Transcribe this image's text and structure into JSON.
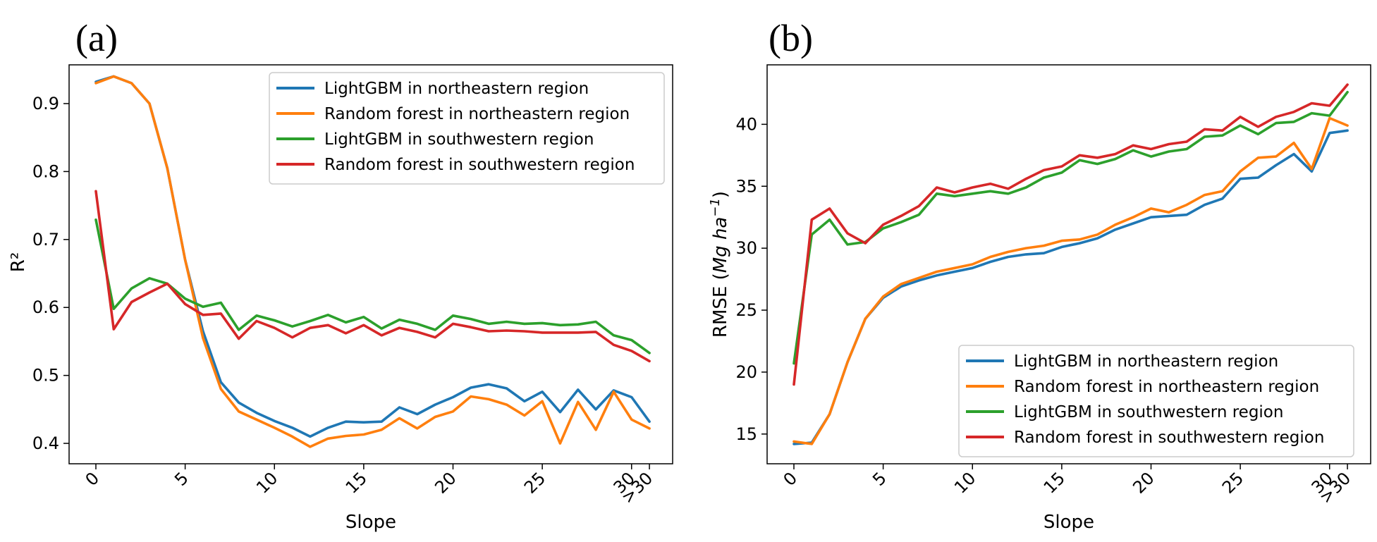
{
  "chart_data": [
    {
      "type": "line",
      "panel_label": "(a)",
      "title": "",
      "xlabel": "Slope",
      "ylabel": "R²",
      "xlim": [
        -1.5,
        32.3
      ],
      "ylim": [
        0.37,
        0.957
      ],
      "x_ticks": [
        {
          "x": 0,
          "label": "0"
        },
        {
          "x": 5,
          "label": "5"
        },
        {
          "x": 10,
          "label": "10"
        },
        {
          "x": 15,
          "label": "15"
        },
        {
          "x": 20,
          "label": "20"
        },
        {
          "x": 25,
          "label": "25"
        },
        {
          "x": 30,
          "label": "30"
        },
        {
          "x": 31,
          "label": ">30"
        }
      ],
      "y_ticks": [
        0.4,
        0.5,
        0.6,
        0.7,
        0.8,
        0.9
      ],
      "y_tick_labels": [
        "0.4",
        "0.5",
        "0.6",
        "0.7",
        "0.8",
        "0.9"
      ],
      "legend_position": "upper-right",
      "x": [
        0,
        1,
        2,
        3,
        4,
        5,
        6,
        7,
        8,
        9,
        10,
        11,
        12,
        13,
        14,
        15,
        16,
        17,
        18,
        19,
        20,
        21,
        22,
        23,
        24,
        25,
        26,
        27,
        28,
        29,
        30,
        31
      ],
      "series": [
        {
          "name": "LightGBM in northeastern region",
          "color": "#1f77b4",
          "values": [
            0.932,
            0.94,
            0.93,
            0.9,
            0.805,
            0.67,
            0.565,
            0.49,
            0.46,
            0.445,
            0.433,
            0.423,
            0.41,
            0.423,
            0.432,
            0.431,
            0.432,
            0.453,
            0.443,
            0.457,
            0.468,
            0.482,
            0.487,
            0.481,
            0.462,
            0.476,
            0.446,
            0.479,
            0.45,
            0.478,
            0.468,
            0.432
          ]
        },
        {
          "name": "Random forest in northeastern region",
          "color": "#ff7f0e",
          "values": [
            0.93,
            0.94,
            0.93,
            0.9,
            0.805,
            0.67,
            0.555,
            0.48,
            0.447,
            0.435,
            0.423,
            0.41,
            0.395,
            0.407,
            0.411,
            0.413,
            0.42,
            0.437,
            0.422,
            0.439,
            0.447,
            0.469,
            0.465,
            0.457,
            0.441,
            0.462,
            0.4,
            0.461,
            0.42,
            0.476,
            0.435,
            0.422
          ]
        },
        {
          "name": "LightGBM in southwestern region",
          "color": "#2ca02c",
          "values": [
            0.729,
            0.598,
            0.628,
            0.643,
            0.635,
            0.613,
            0.601,
            0.607,
            0.567,
            0.588,
            0.581,
            0.572,
            0.58,
            0.589,
            0.578,
            0.586,
            0.569,
            0.582,
            0.576,
            0.567,
            0.588,
            0.583,
            0.576,
            0.579,
            0.576,
            0.577,
            0.574,
            0.575,
            0.579,
            0.559,
            0.552,
            0.533
          ]
        },
        {
          "name": "Random forest in southwestern region",
          "color": "#d62728",
          "values": [
            0.771,
            0.568,
            0.608,
            0.622,
            0.635,
            0.605,
            0.589,
            0.591,
            0.554,
            0.58,
            0.57,
            0.556,
            0.57,
            0.574,
            0.562,
            0.574,
            0.559,
            0.57,
            0.564,
            0.556,
            0.576,
            0.571,
            0.565,
            0.566,
            0.565,
            0.563,
            0.563,
            0.563,
            0.564,
            0.545,
            0.536,
            0.521
          ]
        }
      ]
    },
    {
      "type": "line",
      "panel_label": "(b)",
      "title": "",
      "xlabel": "Slope",
      "ylabel": "RMSE (Mg ha⁻¹)",
      "ylabel_prefix": "RMSE (",
      "ylabel_math": "Mg ha",
      "ylabel_sup": "−1",
      "ylabel_suffix": ")",
      "xlim": [
        -1.5,
        32.3
      ],
      "ylim": [
        12.6,
        44.8
      ],
      "x_ticks": [
        {
          "x": 0,
          "label": "0"
        },
        {
          "x": 5,
          "label": "5"
        },
        {
          "x": 10,
          "label": "10"
        },
        {
          "x": 15,
          "label": "15"
        },
        {
          "x": 20,
          "label": "20"
        },
        {
          "x": 25,
          "label": "25"
        },
        {
          "x": 30,
          "label": "30"
        },
        {
          "x": 31,
          "label": ">30"
        }
      ],
      "y_ticks": [
        15,
        20,
        25,
        30,
        35,
        40
      ],
      "y_tick_labels": [
        "15",
        "20",
        "25",
        "30",
        "35",
        "40"
      ],
      "legend_position": "lower-right",
      "x": [
        0,
        1,
        2,
        3,
        4,
        5,
        6,
        7,
        8,
        9,
        10,
        11,
        12,
        13,
        14,
        15,
        16,
        17,
        18,
        19,
        20,
        21,
        22,
        23,
        24,
        25,
        26,
        27,
        28,
        29,
        30,
        31
      ],
      "series": [
        {
          "name": "LightGBM in northeastern region",
          "color": "#1f77b4",
          "values": [
            14.2,
            14.3,
            16.6,
            20.8,
            24.3,
            26.0,
            26.9,
            27.4,
            27.8,
            28.1,
            28.4,
            28.9,
            29.3,
            29.5,
            29.6,
            30.1,
            30.4,
            30.8,
            31.5,
            32.0,
            32.5,
            32.6,
            32.7,
            33.5,
            34.0,
            35.6,
            35.7,
            36.7,
            37.6,
            36.2,
            39.3,
            39.5
          ]
        },
        {
          "name": "Random forest in northeastern region",
          "color": "#ff7f0e",
          "values": [
            14.4,
            14.2,
            16.6,
            20.8,
            24.3,
            26.1,
            27.1,
            27.6,
            28.1,
            28.4,
            28.7,
            29.3,
            29.7,
            30.0,
            30.2,
            30.6,
            30.7,
            31.1,
            31.9,
            32.5,
            33.2,
            32.9,
            33.5,
            34.3,
            34.6,
            36.2,
            37.3,
            37.4,
            38.5,
            36.4,
            40.5,
            39.9
          ]
        },
        {
          "name": "LightGBM in southwestern region",
          "color": "#2ca02c",
          "values": [
            20.7,
            31.1,
            32.3,
            30.3,
            30.5,
            31.6,
            32.1,
            32.7,
            34.4,
            34.2,
            34.4,
            34.6,
            34.4,
            34.9,
            35.7,
            36.1,
            37.1,
            36.8,
            37.2,
            37.9,
            37.4,
            37.8,
            38.0,
            39.0,
            39.1,
            39.9,
            39.2,
            40.1,
            40.2,
            40.9,
            40.7,
            42.6
          ]
        },
        {
          "name": "Random forest in southwestern region",
          "color": "#d62728",
          "values": [
            19.0,
            32.3,
            33.2,
            31.2,
            30.4,
            31.9,
            32.6,
            33.4,
            34.9,
            34.5,
            34.9,
            35.2,
            34.8,
            35.6,
            36.3,
            36.6,
            37.5,
            37.3,
            37.6,
            38.3,
            38.0,
            38.4,
            38.6,
            39.6,
            39.5,
            40.6,
            39.8,
            40.6,
            41.0,
            41.7,
            41.5,
            43.2
          ]
        }
      ]
    }
  ]
}
